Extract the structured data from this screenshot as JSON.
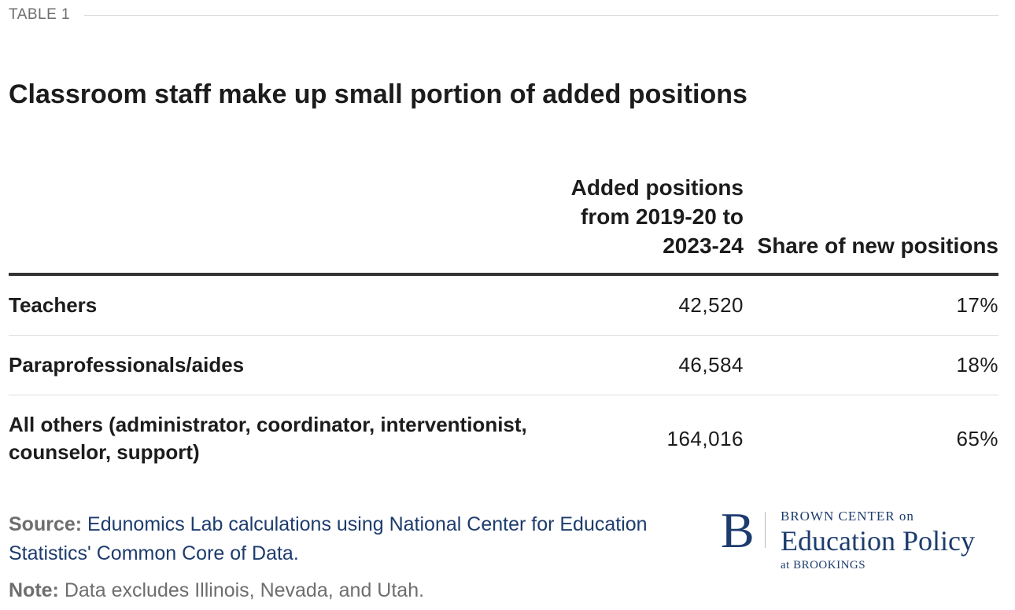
{
  "header": {
    "table_label": "TABLE 1",
    "title": "Classroom staff make up small portion of added positions"
  },
  "chart_data": {
    "type": "table",
    "title": "Classroom staff make up small portion of added positions",
    "columns": [
      "",
      "Added positions from 2019-20 to 2023-24",
      "Share of new positions"
    ],
    "rows": [
      {
        "category": "Teachers",
        "added_positions": "42,520",
        "share": "17%"
      },
      {
        "category": "Paraprofessionals/aides",
        "added_positions": "46,584",
        "share": "18%"
      },
      {
        "category": "All others (administrator, coordinator, interventionist, counselor, support)",
        "added_positions": "164,016",
        "share": "65%"
      }
    ]
  },
  "footer": {
    "source_label": "Source:",
    "source_text": "Edunomics Lab calculations using National Center for Education Statistics' Common Core of Data.",
    "note_label": "Note:",
    "note_text": "Data excludes Illinois, Nevada, and Utah."
  },
  "logo": {
    "mark": "B",
    "line1": "BROWN CENTER on",
    "line2": "Education Policy",
    "line3": "at BROOKINGS",
    "color": "#1d3c6e"
  }
}
